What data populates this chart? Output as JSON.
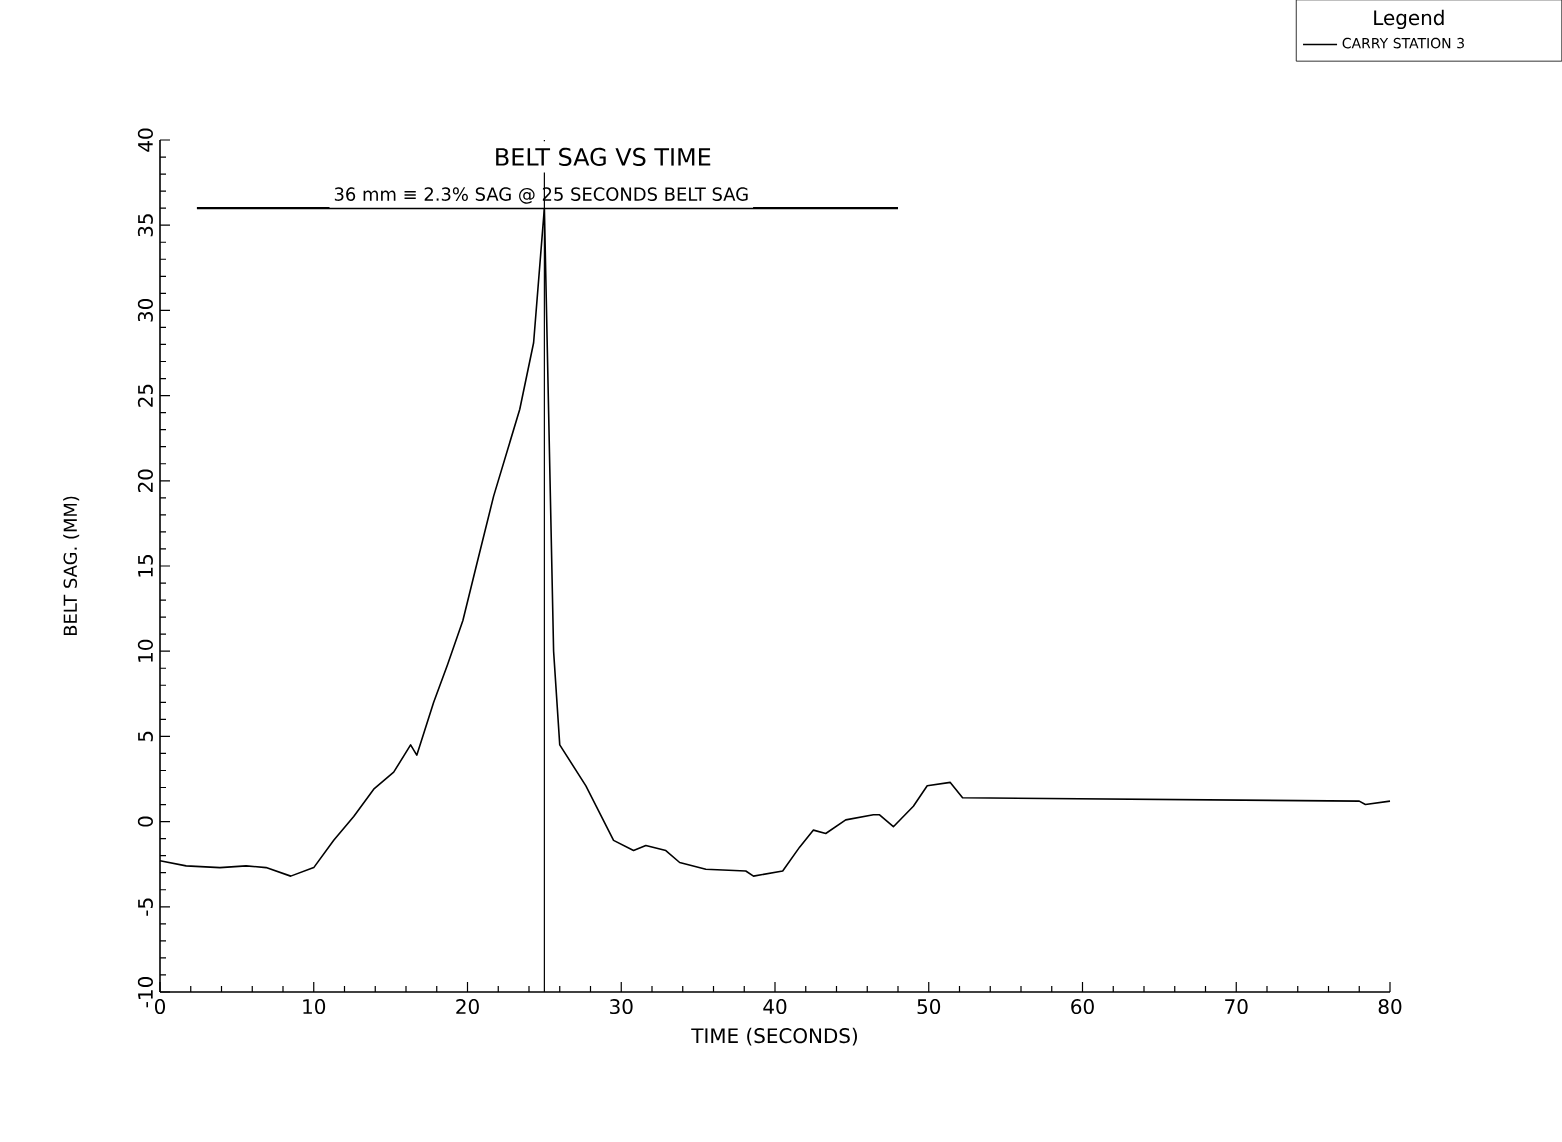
{
  "chart_data": {
    "type": "line",
    "title": "BELT SAG VS TIME",
    "xlabel": "TIME (SECONDS)",
    "ylabel": "BELT SAG. (MM)",
    "legend_title": "Legend",
    "xlim": [
      0,
      80
    ],
    "xticks": [
      0,
      10,
      20,
      30,
      40,
      50,
      60,
      70,
      80
    ],
    "ylim": [
      -10,
      40
    ],
    "yticks": [
      -10,
      -5,
      0,
      5,
      10,
      15,
      20,
      25,
      30,
      35,
      40
    ],
    "grid": false,
    "legend": "top right",
    "marker": "none",
    "line_style": "solid",
    "ref_lines": [
      {
        "axis": "y",
        "value": 36,
        "label": "36 mm ≡ 2.3% SAG @ 25 SECONDS BELT SAG",
        "color": "#000000"
      },
      {
        "axis": "x",
        "value": 25,
        "color": "#000000"
      }
    ],
    "series": [
      {
        "name": "CARRY STATION 3",
        "color": "#000000",
        "x": [
          0,
          1.7,
          3.9,
          5.6,
          6.9,
          8.5,
          10,
          11.3,
          12.6,
          13.9,
          15.2,
          16.3,
          16.7,
          17.8,
          18.7,
          19.7,
          20.6,
          21.7,
          23.4,
          24.3,
          25,
          25.6,
          26,
          27.7,
          29.5,
          30.8,
          31.6,
          32.9,
          33.8,
          35.5,
          38.1,
          38.6,
          40.5,
          41.6,
          42.5,
          43.3,
          44.6,
          46.4,
          46.8,
          47.7,
          49,
          49.9,
          51.4,
          52.2,
          78,
          78.4,
          80
        ],
        "values": [
          -2.3,
          -2.6,
          -2.7,
          -2.6,
          -2.7,
          -3.2,
          -2.7,
          -1.1,
          0.3,
          1.9,
          2.9,
          4.5,
          3.9,
          7,
          9.2,
          11.8,
          15.1,
          19.1,
          24.2,
          28.1,
          36,
          10,
          4.5,
          2.1,
          -1.1,
          -1.7,
          -1.4,
          -1.7,
          -2.4,
          -2.8,
          -2.9,
          -3.2,
          -2.9,
          -1.5,
          -0.5,
          -0.7,
          0.1,
          0.4,
          0.4,
          -0.3,
          0.9,
          2.1,
          2.3,
          1.4,
          1.2,
          1,
          1.2
        ]
      }
    ]
  }
}
